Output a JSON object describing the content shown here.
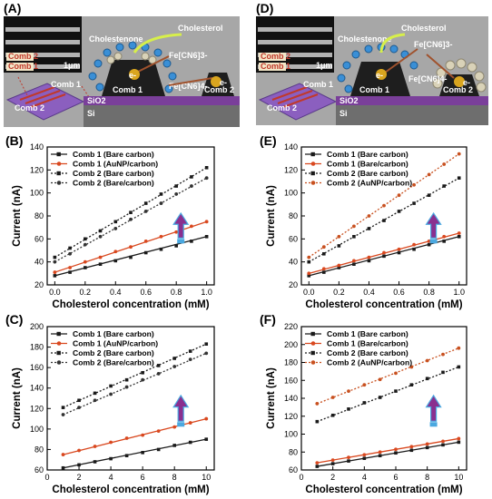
{
  "panel_letters": [
    "(A)",
    "(B)",
    "(C)",
    "(D)",
    "(E)",
    "(F)"
  ],
  "schematics": [
    {
      "id": "A",
      "labels": {
        "cholesterol": "Cholesterol",
        "cholestenone": "Cholestenone",
        "fe3": "Fe[CN6]3-",
        "fe4": "Fe[CN6]4-",
        "electron_left": "e-",
        "electron_right": "e-",
        "comb1": "Comb 1",
        "comb2": "Comb 2",
        "sio2": "SiO2",
        "si": "Si",
        "inset_comb2": "Comb 2",
        "inset_comb1": "Comb 1",
        "scale": "1μm",
        "chip_comb1": "Comb 1",
        "chip_comb2": "Comb 2"
      }
    },
    {
      "id": "D",
      "labels": {
        "cholesterol": "Cholesterol",
        "cholestenone": "Cholestenone",
        "fe3": "Fe[CN6]3-",
        "fe4": "Fe[CN6]4-",
        "electron_left": "e-",
        "electron_right": "e-",
        "comb1": "Comb 1",
        "comb2": "Comb 2",
        "sio2": "SiO2",
        "si": "Si",
        "inset_comb2": "Comb 2",
        "inset_comb1": "Comb 1",
        "scale": "1μm",
        "chip_comb1": "Comb 1",
        "chip_comb2": "Comb 2"
      }
    }
  ],
  "colors": {
    "comb1_bare": "#1a1a1a",
    "comb1_aunp": "#d9481f",
    "comb2_bare": "#1a1a1a",
    "comb2_aunp": "#c8501f",
    "arrow": "#8a2f8f",
    "arrow_edge": "#4aa8e0",
    "schematic_bg": "#a7a7a7",
    "sio2": "#7a3f9a",
    "si": "#6e6e6e"
  },
  "chart_data": [
    {
      "id": "B",
      "type": "line",
      "xlabel": "Cholesterol concentration (mM)",
      "ylabel": "Current (nA)",
      "xlim": [
        -0.05,
        1.05
      ],
      "ylim": [
        20,
        140
      ],
      "xticks": [
        0.0,
        0.2,
        0.4,
        0.6,
        0.8,
        1.0
      ],
      "xtick_labels": [
        "0.0",
        "0.2",
        "0.4",
        "0.6",
        "0.8",
        "1.0"
      ],
      "yticks": [
        20,
        40,
        60,
        80,
        100,
        120,
        140
      ],
      "legend": "top-left",
      "series": [
        {
          "name": "Comb 1 (Bare carbon)",
          "style": "solid",
          "marker": "square",
          "color": "#1a1a1a",
          "x": [
            0.0,
            0.1,
            0.2,
            0.3,
            0.4,
            0.5,
            0.6,
            0.7,
            0.8,
            0.9,
            1.0
          ],
          "y": [
            28,
            31,
            35,
            38,
            41,
            44,
            48,
            51,
            54,
            58,
            62
          ]
        },
        {
          "name": "Comb 1 (AuNP/carbon)",
          "style": "solid",
          "marker": "circle",
          "color": "#d9481f",
          "x": [
            0.0,
            0.1,
            0.2,
            0.3,
            0.4,
            0.5,
            0.6,
            0.7,
            0.8,
            0.9,
            1.0
          ],
          "y": [
            31,
            35,
            40,
            44,
            49,
            53,
            58,
            62,
            66,
            71,
            75
          ]
        },
        {
          "name": "Comb 2 (Bare carbon)",
          "style": "dotted",
          "marker": "square",
          "color": "#1a1a1a",
          "x": [
            0.0,
            0.1,
            0.2,
            0.3,
            0.4,
            0.5,
            0.6,
            0.7,
            0.8,
            0.9,
            1.0
          ],
          "y": [
            44,
            52,
            60,
            67,
            75,
            83,
            91,
            99,
            106,
            114,
            122
          ]
        },
        {
          "name": "Comb 2 (Bare/carbon)",
          "style": "dotted",
          "marker": "circle",
          "color": "#333333",
          "x": [
            0.0,
            0.1,
            0.2,
            0.3,
            0.4,
            0.5,
            0.6,
            0.7,
            0.8,
            0.9,
            1.0
          ],
          "y": [
            40,
            47,
            55,
            62,
            69,
            77,
            84,
            91,
            99,
            106,
            113
          ]
        }
      ]
    },
    {
      "id": "C",
      "type": "line",
      "xlabel": "Cholesterol concentration (mM)",
      "ylabel": "Current (nA)",
      "xlim": [
        0,
        10.5
      ],
      "ylim": [
        60,
        200
      ],
      "xticks": [
        0,
        2,
        4,
        6,
        8,
        10
      ],
      "xtick_labels": [
        "0",
        "2",
        "4",
        "6",
        "8",
        "10"
      ],
      "yticks": [
        60,
        80,
        100,
        120,
        140,
        160,
        180,
        200
      ],
      "legend": "top-left",
      "series": [
        {
          "name": "Comb 1 (Bare carbon)",
          "style": "solid",
          "marker": "square",
          "color": "#1a1a1a",
          "x": [
            1,
            2,
            3,
            4,
            5,
            6,
            7,
            8,
            9,
            10
          ],
          "y": [
            62,
            65,
            68,
            71,
            74,
            77,
            80,
            84,
            87,
            90
          ]
        },
        {
          "name": "Comb 1 (AuNP/carbon)",
          "style": "solid",
          "marker": "circle",
          "color": "#d9481f",
          "x": [
            1,
            2,
            3,
            4,
            5,
            6,
            7,
            8,
            9,
            10
          ],
          "y": [
            75,
            79,
            83,
            87,
            91,
            94,
            98,
            102,
            106,
            110
          ]
        },
        {
          "name": "Comb 2 (Bare carbon)",
          "style": "dotted",
          "marker": "square",
          "color": "#1a1a1a",
          "x": [
            1,
            2,
            3,
            4,
            5,
            6,
            7,
            8,
            9,
            10
          ],
          "y": [
            121,
            128,
            135,
            142,
            148,
            155,
            162,
            169,
            176,
            183
          ]
        },
        {
          "name": "Comb 2 (Bare/carbon)",
          "style": "dotted",
          "marker": "circle",
          "color": "#333333",
          "x": [
            1,
            2,
            3,
            4,
            5,
            6,
            7,
            8,
            9,
            10
          ],
          "y": [
            114,
            121,
            128,
            134,
            141,
            148,
            154,
            161,
            168,
            174
          ]
        }
      ]
    },
    {
      "id": "E",
      "type": "line",
      "xlabel": "Cholesterol concentration (mM)",
      "ylabel": "Current (nA)",
      "xlim": [
        -0.05,
        1.05
      ],
      "ylim": [
        20,
        140
      ],
      "xticks": [
        0.0,
        0.2,
        0.4,
        0.6,
        0.8,
        1.0
      ],
      "xtick_labels": [
        "0.0",
        "0.2",
        "0.4",
        "0.6",
        "0.8",
        "1.0"
      ],
      "yticks": [
        20,
        40,
        60,
        80,
        100,
        120,
        140
      ],
      "legend": "top-left",
      "series": [
        {
          "name": "Comb 1 (Bare carbon)",
          "style": "solid",
          "marker": "square",
          "color": "#1a1a1a",
          "x": [
            0.0,
            0.1,
            0.2,
            0.3,
            0.4,
            0.5,
            0.6,
            0.7,
            0.8,
            0.9,
            1.0
          ],
          "y": [
            28,
            31,
            35,
            38,
            41,
            45,
            48,
            51,
            55,
            58,
            62
          ]
        },
        {
          "name": "Comb 1 (Bare/carbon)",
          "style": "solid",
          "marker": "circle",
          "color": "#d9481f",
          "x": [
            0.0,
            0.1,
            0.2,
            0.3,
            0.4,
            0.5,
            0.6,
            0.7,
            0.8,
            0.9,
            1.0
          ],
          "y": [
            30,
            34,
            37,
            41,
            44,
            48,
            51,
            55,
            58,
            62,
            65
          ]
        },
        {
          "name": "Comb 2 (Bare carbon)",
          "style": "dotted",
          "marker": "square",
          "color": "#1a1a1a",
          "x": [
            0.0,
            0.1,
            0.2,
            0.3,
            0.4,
            0.5,
            0.6,
            0.7,
            0.8,
            0.9,
            1.0
          ],
          "y": [
            40,
            47,
            54,
            62,
            69,
            76,
            84,
            91,
            98,
            106,
            113
          ]
        },
        {
          "name": "Comb 2 (AuNP/carbon)",
          "style": "dotted",
          "marker": "circle",
          "color": "#c8501f",
          "x": [
            0.0,
            0.1,
            0.2,
            0.3,
            0.4,
            0.5,
            0.6,
            0.7,
            0.8,
            0.9,
            1.0
          ],
          "y": [
            44,
            53,
            62,
            71,
            80,
            89,
            98,
            107,
            116,
            125,
            134
          ]
        }
      ]
    },
    {
      "id": "F",
      "type": "line",
      "xlabel": "Cholesterol concentration (mM)",
      "ylabel": "Current (nA)",
      "xlim": [
        0,
        10.5
      ],
      "ylim": [
        60,
        220
      ],
      "xticks": [
        0,
        2,
        4,
        6,
        8,
        10
      ],
      "xtick_labels": [
        "0",
        "2",
        "4",
        "6",
        "8",
        "10"
      ],
      "yticks": [
        60,
        80,
        100,
        120,
        140,
        160,
        180,
        200,
        220
      ],
      "legend": "top-left",
      "series": [
        {
          "name": "Comb 1 (Bare carbon)",
          "style": "solid",
          "marker": "square",
          "color": "#1a1a1a",
          "x": [
            1,
            2,
            3,
            4,
            5,
            6,
            7,
            8,
            9,
            10
          ],
          "y": [
            64,
            67,
            70,
            73,
            76,
            79,
            82,
            85,
            88,
            91
          ]
        },
        {
          "name": "Comb 1 (Bare/carbon)",
          "style": "solid",
          "marker": "circle",
          "color": "#d9481f",
          "x": [
            1,
            2,
            3,
            4,
            5,
            6,
            7,
            8,
            9,
            10
          ],
          "y": [
            68,
            71,
            74,
            77,
            80,
            83,
            86,
            89,
            92,
            95
          ]
        },
        {
          "name": "Comb 2 (Bare carbon)",
          "style": "dotted",
          "marker": "square",
          "color": "#1a1a1a",
          "x": [
            1,
            2,
            3,
            4,
            5,
            6,
            7,
            8,
            9,
            10
          ],
          "y": [
            114,
            121,
            128,
            135,
            141,
            148,
            155,
            162,
            169,
            175
          ]
        },
        {
          "name": "Comb 2 (AuNP/carbon)",
          "style": "dotted",
          "marker": "circle",
          "color": "#c8501f",
          "x": [
            1,
            2,
            3,
            4,
            5,
            6,
            7,
            8,
            9,
            10
          ],
          "y": [
            134,
            141,
            148,
            155,
            161,
            168,
            175,
            182,
            189,
            196
          ]
        }
      ]
    }
  ]
}
